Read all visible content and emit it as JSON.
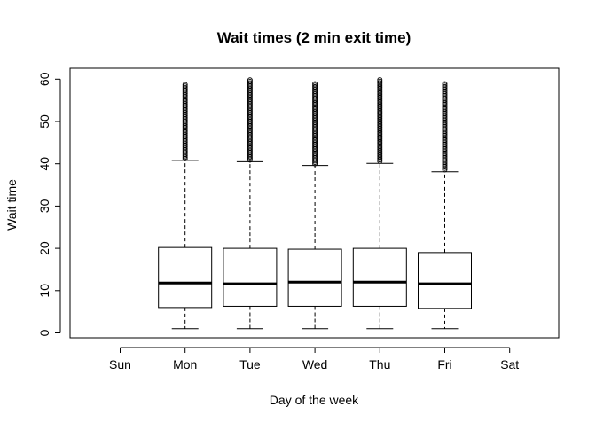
{
  "chart_data": {
    "type": "boxplot",
    "title": "Wait times (2 min exit time)",
    "xlabel": "Day of the week",
    "ylabel": "Wait time",
    "ylim": [
      0,
      60
    ],
    "yticks": [
      0,
      10,
      20,
      30,
      40,
      50,
      60
    ],
    "grid": false,
    "legend": "none",
    "categories": [
      "Sun",
      "Mon",
      "Tue",
      "Wed",
      "Thu",
      "Fri",
      "Sat"
    ],
    "boxes": [
      null,
      {
        "whisker_low": 1,
        "q1": 6,
        "median": 11.8,
        "q3": 20.2,
        "whisker_high": 40.8,
        "outliers_min": 41.2,
        "outliers_max": 59
      },
      {
        "whisker_low": 1,
        "q1": 6.3,
        "median": 11.6,
        "q3": 20,
        "whisker_high": 40.5,
        "outliers_min": 40.9,
        "outliers_max": 60
      },
      {
        "whisker_low": 1,
        "q1": 6.3,
        "median": 12,
        "q3": 19.8,
        "whisker_high": 39.6,
        "outliers_min": 40,
        "outliers_max": 59
      },
      {
        "whisker_low": 1,
        "q1": 6.3,
        "median": 12,
        "q3": 20,
        "whisker_high": 40.1,
        "outliers_min": 40.6,
        "outliers_max": 60
      },
      {
        "whisker_low": 1,
        "q1": 5.8,
        "median": 11.6,
        "q3": 19,
        "whisker_high": 38.1,
        "outliers_min": 38.6,
        "outliers_max": 59
      },
      null
    ]
  }
}
